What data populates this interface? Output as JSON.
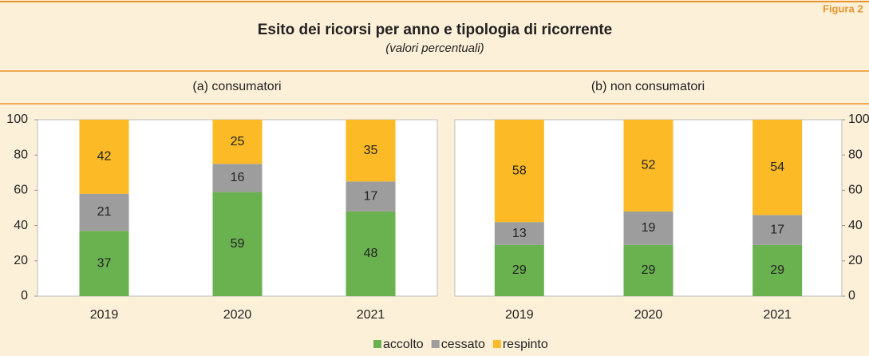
{
  "figure_label": "Figura 2",
  "title": "Esito dei ricorsi per anno e tipologia di ricorrente",
  "subtitle": "(valori percentuali)",
  "chart_data": [
    {
      "type": "bar",
      "stacked": true,
      "title": "(a) consumatori",
      "categories": [
        "2019",
        "2020",
        "2021"
      ],
      "series": [
        {
          "name": "accolto",
          "color": "#6ab150",
          "values": [
            37,
            59,
            48
          ]
        },
        {
          "name": "cessato",
          "color": "#9d9d9d",
          "values": [
            21,
            16,
            17
          ]
        },
        {
          "name": "respinto",
          "color": "#fbba26",
          "values": [
            42,
            25,
            35
          ]
        }
      ],
      "ylim": [
        0,
        100
      ],
      "yticks": [
        0,
        20,
        40,
        60,
        80,
        100
      ],
      "axis_side": "left"
    },
    {
      "type": "bar",
      "stacked": true,
      "title": "(b) non consumatori",
      "categories": [
        "2019",
        "2020",
        "2021"
      ],
      "series": [
        {
          "color": "#6ab150",
          "values": [
            29,
            29,
            29
          ]
        },
        {
          "color": "#9d9d9d",
          "values": [
            13,
            19,
            17
          ]
        },
        {
          "color": "#fbba26",
          "values": [
            58,
            52,
            54
          ]
        }
      ],
      "ylim": [
        0,
        100
      ],
      "yticks": [
        0,
        20,
        40,
        60,
        80,
        100
      ],
      "axis_side": "right"
    }
  ]
}
